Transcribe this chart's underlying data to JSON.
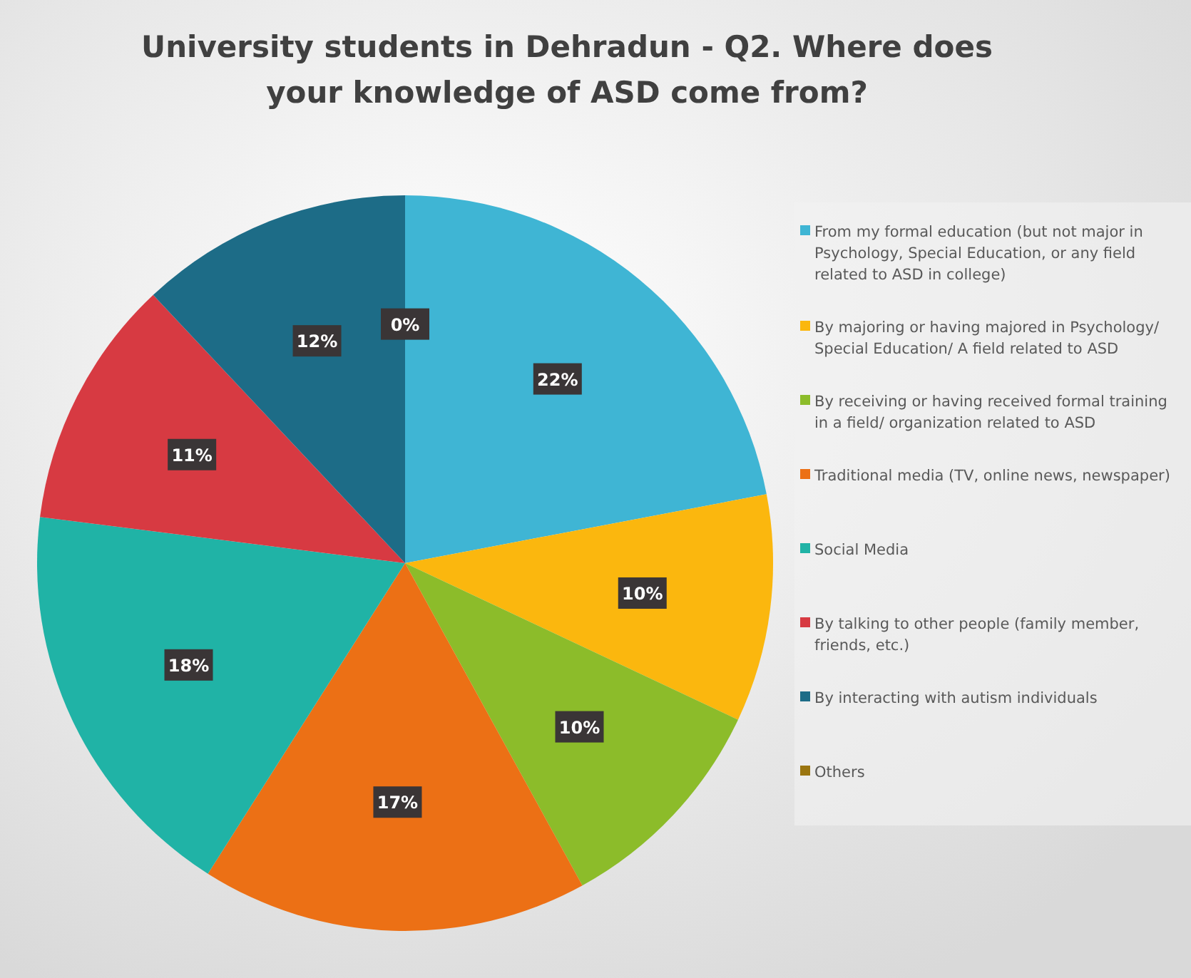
{
  "chart_data": {
    "type": "pie",
    "title": "University students in Dehradun - Q2. Where does your knowledge of ASD come from?",
    "categories": [
      "From my formal education (but not major in Psychology, Special Education, or any field related to ASD in college)",
      "By majoring or having majored in Psychology/ Special Education/ A field related to ASD",
      "By receiving or having received formal training in a field/ organization related to ASD",
      "Traditional media (TV, online news, newspaper)",
      "Social Media",
      "By talking to other people (family member, friends, etc.)",
      "By interacting with autism individuals",
      "Others"
    ],
    "values": [
      22,
      10,
      10,
      17,
      18,
      11,
      12,
      0
    ],
    "colors": [
      "#3fb5d4",
      "#fbb70e",
      "#8cbc2a",
      "#ec7015",
      "#20b3a6",
      "#d73a42",
      "#1d6c87",
      "#9a7510"
    ],
    "value_labels": [
      "22%",
      "10%",
      "10%",
      "17%",
      "18%",
      "11%",
      "12%",
      "0%"
    ],
    "legend": "right"
  }
}
